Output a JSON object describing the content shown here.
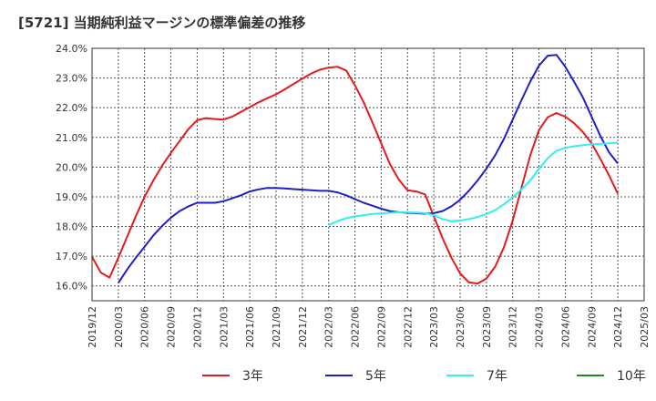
{
  "chart_data": {
    "type": "line",
    "title": "[5721]  当期純利益マージンの標準偏差の推移",
    "xlabel": "",
    "ylabel": "",
    "ylim": [
      15.5,
      24.0
    ],
    "grid": true,
    "legend_position": "bottom",
    "y_ticks": [
      "24.0%",
      "23.0%",
      "22.0%",
      "21.0%",
      "20.0%",
      "19.0%",
      "18.0%",
      "17.0%",
      "16.0%"
    ],
    "y_tick_values": [
      24,
      23,
      22,
      21,
      20,
      19,
      18,
      17,
      16
    ],
    "x_ticks": [
      "2019/12",
      "2020/03",
      "2020/06",
      "2020/09",
      "2020/12",
      "2021/03",
      "2021/06",
      "2021/09",
      "2021/12",
      "2022/03",
      "2022/06",
      "2022/09",
      "2022/12",
      "2023/03",
      "2023/06",
      "2023/09",
      "2023/12",
      "2024/03",
      "2024/06",
      "2024/09",
      "2024/12",
      "2025/03"
    ],
    "series": [
      {
        "name": "3年",
        "color": "#e41a1c",
        "x": [
          "2019/12",
          "2020/01",
          "2020/02",
          "2020/03",
          "2020/04",
          "2020/05",
          "2020/06",
          "2020/07",
          "2020/08",
          "2020/09",
          "2020/10",
          "2020/11",
          "2020/12",
          "2021/01",
          "2021/02",
          "2021/03",
          "2021/04",
          "2021/05",
          "2021/06",
          "2021/07",
          "2021/08",
          "2021/09",
          "2021/10",
          "2021/11",
          "2021/12",
          "2022/01",
          "2022/02",
          "2022/03",
          "2022/04",
          "2022/05",
          "2022/06",
          "2022/07",
          "2022/08",
          "2022/09",
          "2022/10",
          "2022/11",
          "2022/12",
          "2023/01",
          "2023/02",
          "2023/03",
          "2023/04",
          "2023/05",
          "2023/06",
          "2023/07",
          "2023/08",
          "2023/09",
          "2023/10",
          "2023/11",
          "2023/12",
          "2024/01",
          "2024/02",
          "2024/03",
          "2024/04",
          "2024/05",
          "2024/06",
          "2024/07",
          "2024/08",
          "2024/09",
          "2024/10",
          "2024/11",
          "2024/12"
        ],
        "values": [
          16.98,
          16.45,
          16.28,
          16.95,
          17.65,
          18.35,
          19.0,
          19.55,
          20.05,
          20.48,
          20.88,
          21.28,
          21.58,
          21.65,
          21.62,
          21.6,
          21.7,
          21.86,
          22.02,
          22.18,
          22.32,
          22.45,
          22.62,
          22.8,
          22.98,
          23.15,
          23.28,
          23.35,
          23.38,
          23.25,
          22.75,
          22.18,
          21.5,
          20.8,
          20.1,
          19.58,
          19.22,
          19.18,
          19.08,
          18.35,
          17.6,
          16.95,
          16.42,
          16.12,
          16.08,
          16.25,
          16.65,
          17.3,
          18.2,
          19.3,
          20.4,
          21.25,
          21.68,
          21.82,
          21.7,
          21.48,
          21.18,
          20.8,
          20.28,
          19.72,
          19.1
        ]
      },
      {
        "name": "5年",
        "color": "#1f1fc8",
        "x": [
          "2020/03",
          "2020/04",
          "2020/05",
          "2020/06",
          "2020/07",
          "2020/08",
          "2020/09",
          "2020/10",
          "2020/11",
          "2020/12",
          "2021/01",
          "2021/02",
          "2021/03",
          "2021/04",
          "2021/05",
          "2021/06",
          "2021/07",
          "2021/08",
          "2021/09",
          "2021/10",
          "2021/11",
          "2021/12",
          "2022/01",
          "2022/02",
          "2022/03",
          "2022/04",
          "2022/05",
          "2022/06",
          "2022/07",
          "2022/08",
          "2022/09",
          "2022/10",
          "2022/11",
          "2022/12",
          "2023/01",
          "2023/02",
          "2023/03",
          "2023/04",
          "2023/05",
          "2023/06",
          "2023/07",
          "2023/08",
          "2023/09",
          "2023/10",
          "2023/11",
          "2023/12",
          "2024/01",
          "2024/02",
          "2024/03",
          "2024/04",
          "2024/05",
          "2024/06",
          "2024/07",
          "2024/08",
          "2024/09",
          "2024/10",
          "2024/11",
          "2024/12"
        ],
        "values": [
          16.1,
          16.55,
          16.95,
          17.32,
          17.7,
          18.02,
          18.3,
          18.52,
          18.68,
          18.8,
          18.8,
          18.8,
          18.85,
          18.95,
          19.05,
          19.18,
          19.25,
          19.3,
          19.3,
          19.28,
          19.26,
          19.24,
          19.22,
          19.2,
          19.2,
          19.15,
          19.05,
          18.92,
          18.8,
          18.7,
          18.6,
          18.52,
          18.48,
          18.46,
          18.45,
          18.43,
          18.45,
          18.52,
          18.68,
          18.9,
          19.2,
          19.55,
          19.95,
          20.4,
          20.95,
          21.6,
          22.25,
          22.88,
          23.42,
          23.75,
          23.78,
          23.38,
          22.88,
          22.35,
          21.7,
          21.05,
          20.5,
          20.12
        ]
      },
      {
        "name": "7年",
        "color": "#33f0f0",
        "x": [
          "2022/03",
          "2022/04",
          "2022/05",
          "2022/06",
          "2022/07",
          "2022/08",
          "2022/09",
          "2022/10",
          "2022/11",
          "2022/12",
          "2023/01",
          "2023/02",
          "2023/03",
          "2023/04",
          "2023/05",
          "2023/06",
          "2023/07",
          "2023/08",
          "2023/09",
          "2023/10",
          "2023/11",
          "2023/12",
          "2024/01",
          "2024/02",
          "2024/03",
          "2024/04",
          "2024/05",
          "2024/06",
          "2024/07",
          "2024/08",
          "2024/09",
          "2024/10",
          "2024/11",
          "2024/12"
        ],
        "values": [
          18.05,
          18.18,
          18.28,
          18.34,
          18.38,
          18.42,
          18.44,
          18.46,
          18.48,
          18.48,
          18.47,
          18.45,
          18.38,
          18.25,
          18.18,
          18.2,
          18.25,
          18.32,
          18.42,
          18.55,
          18.75,
          18.98,
          19.25,
          19.55,
          19.95,
          20.3,
          20.55,
          20.65,
          20.7,
          20.74,
          20.77,
          20.78,
          20.8,
          20.82
        ]
      },
      {
        "name": "10年",
        "color": "#1a8a1a",
        "x": [],
        "values": []
      }
    ]
  }
}
